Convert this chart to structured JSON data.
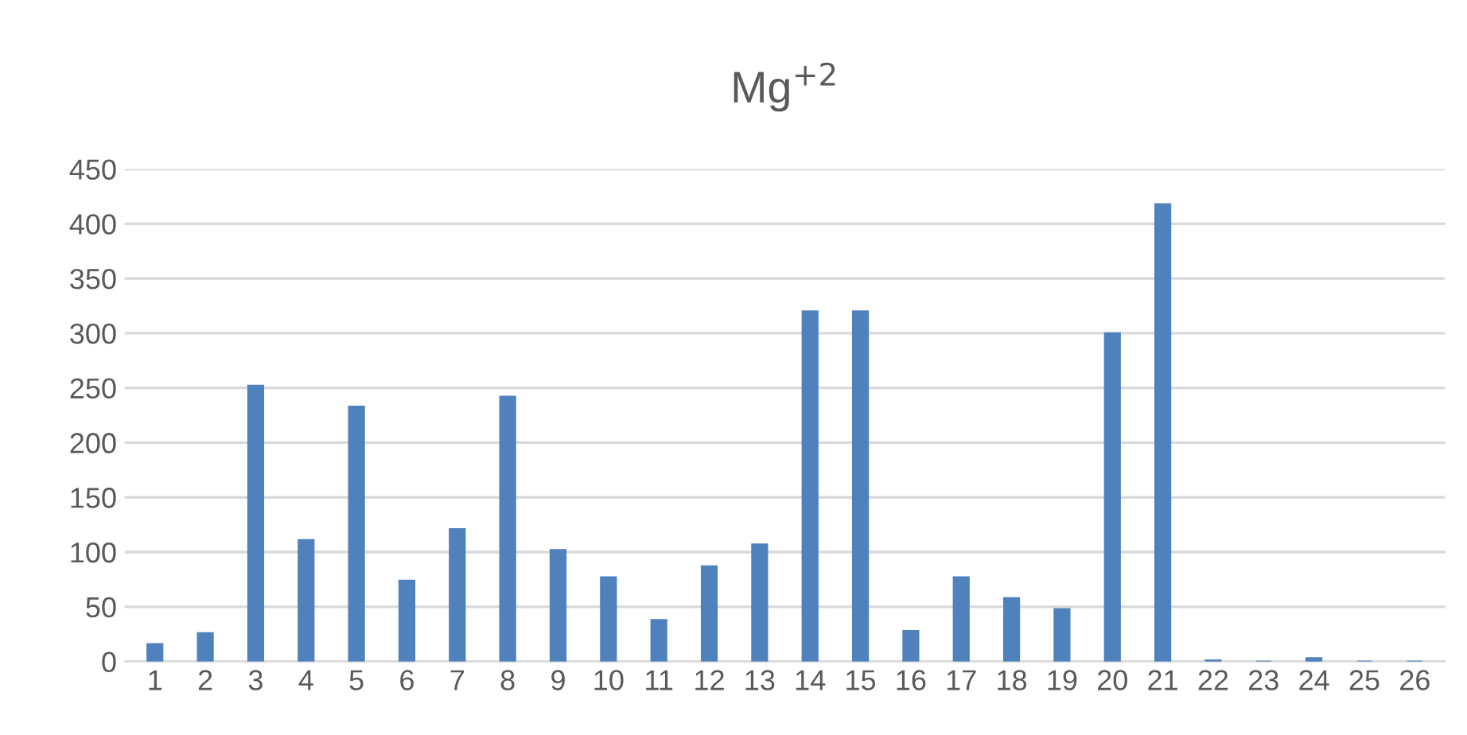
{
  "chart_data": {
    "type": "bar",
    "title": "Mg$^{+2}$",
    "categories": [
      "1",
      "2",
      "3",
      "4",
      "5",
      "6",
      "7",
      "8",
      "9",
      "10",
      "11",
      "12",
      "13",
      "14",
      "15",
      "16",
      "17",
      "18",
      "19",
      "20",
      "21",
      "22",
      "23",
      "24",
      "25",
      "26"
    ],
    "values": [
      16,
      26,
      252,
      111,
      233,
      74,
      121,
      242,
      102,
      77,
      38,
      87,
      107,
      320,
      320,
      28,
      77,
      58,
      48,
      300,
      418,
      1,
      0,
      3,
      0,
      0
    ],
    "color": "#4f81bd",
    "ylim": [
      0,
      450
    ],
    "yticks": [
      0,
      50,
      100,
      150,
      200,
      250,
      300,
      350,
      400,
      450
    ],
    "grid": "y"
  }
}
